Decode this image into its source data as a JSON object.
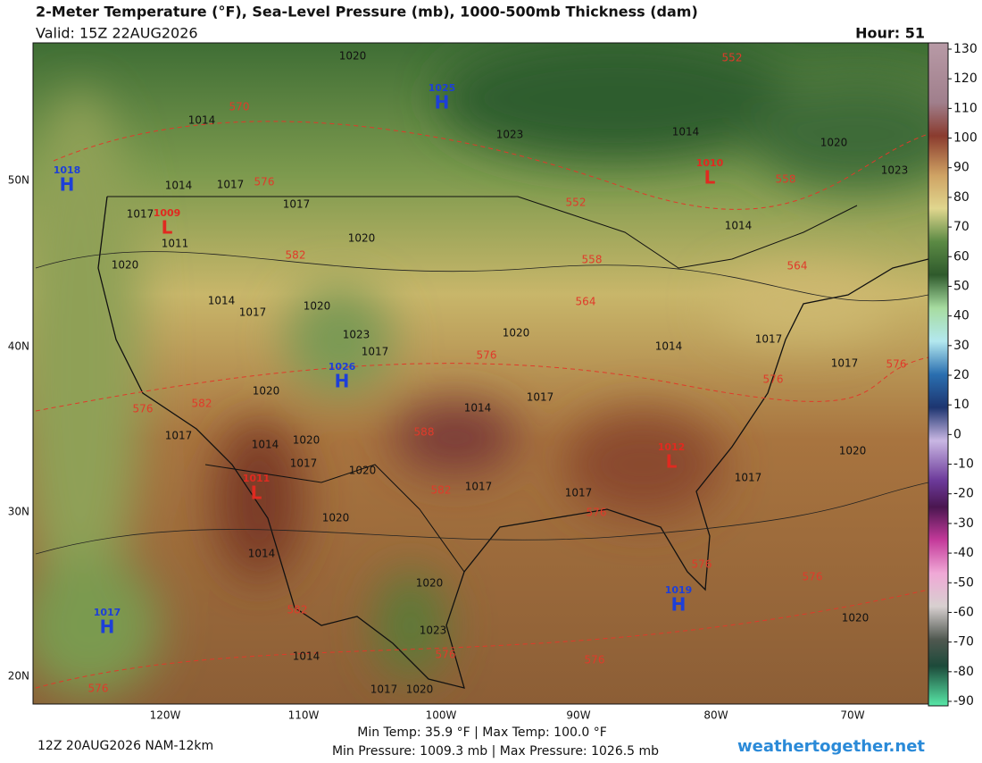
{
  "header": {
    "title": "2-Meter Temperature (°F), Sea-Level Pressure (mb), 1000-500mb Thickness (dam)",
    "valid": "Valid: 15Z 22AUG2026",
    "hour": "Hour: 51"
  },
  "colorbar": {
    "ticks": [
      130,
      120,
      110,
      100,
      90,
      80,
      70,
      60,
      50,
      40,
      30,
      20,
      10,
      0,
      -10,
      -20,
      -30,
      -40,
      -50,
      -60,
      -70,
      -80,
      -90
    ]
  },
  "latitude_labels": [
    "50N",
    "40N",
    "30N",
    "20N"
  ],
  "longitude_labels": [
    "120W",
    "110W",
    "100W",
    "90W",
    "80W",
    "70W"
  ],
  "pressure_centers": [
    {
      "letter": "H",
      "value": 1025,
      "kind": "high"
    },
    {
      "letter": "H",
      "value": 1018,
      "kind": "high"
    },
    {
      "letter": "L",
      "value": 1009,
      "kind": "low"
    },
    {
      "letter": "L",
      "value": 1010,
      "kind": "low"
    },
    {
      "letter": "H",
      "value": 1026,
      "kind": "high"
    },
    {
      "letter": "L",
      "value": 1011,
      "kind": "low"
    },
    {
      "letter": "L",
      "value": 1012,
      "kind": "low"
    },
    {
      "letter": "H",
      "value": 1019,
      "kind": "high"
    },
    {
      "letter": "H",
      "value": 1017,
      "kind": "high"
    }
  ],
  "isobar_labels": [
    1020,
    1023,
    1014,
    1014,
    1017,
    1017,
    1017,
    1011,
    1020,
    1020,
    1014,
    1017,
    1020,
    1023,
    1017,
    1020,
    1014,
    1017,
    1017,
    1020,
    1017,
    1014,
    1017,
    1014,
    1020,
    1017,
    1020,
    1017,
    1017,
    1017,
    1020,
    1020,
    1014,
    1020,
    1023,
    1014,
    1017,
    1020,
    1020,
    1020,
    1023,
    1014,
    1014
  ],
  "thickness_labels": [
    570,
    576,
    582,
    552,
    552,
    558,
    564,
    564,
    576,
    576,
    576,
    582,
    576,
    588,
    582,
    576,
    576,
    576,
    582,
    576,
    576,
    576,
    558
  ],
  "footer": {
    "run": "12Z 20AUG2026 NAM-12km",
    "temps": "Min Temp:  35.9 °F | Max Temp: 100.0 °F",
    "pressures": "Min Pressure: 1009.3 mb | Max Pressure: 1026.5 mb",
    "site": "weathertogether.net"
  }
}
